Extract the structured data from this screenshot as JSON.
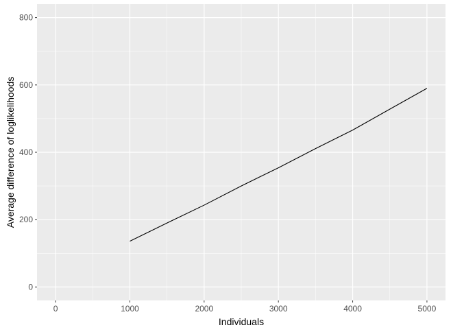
{
  "chart_data": {
    "type": "line",
    "title": "",
    "xlabel": "Individuals",
    "ylabel": "Average difference of loglikelihoods",
    "xlim": [
      -250,
      5250
    ],
    "ylim": [
      -40,
      840
    ],
    "x_ticks": [
      0,
      1000,
      2000,
      3000,
      4000,
      5000
    ],
    "y_ticks": [
      0,
      200,
      400,
      600,
      800
    ],
    "grid": true,
    "legend": "none",
    "colors": {
      "panel_background": "#ebebeb",
      "grid_major": "#ffffff",
      "line": "#000000"
    },
    "series": [
      {
        "x": [
          1000,
          1500,
          2000,
          2500,
          3000,
          3500,
          4000,
          4500,
          5000
        ],
        "y": [
          136,
          190,
          243,
          300,
          354,
          411,
          466,
          528,
          590
        ]
      }
    ]
  }
}
